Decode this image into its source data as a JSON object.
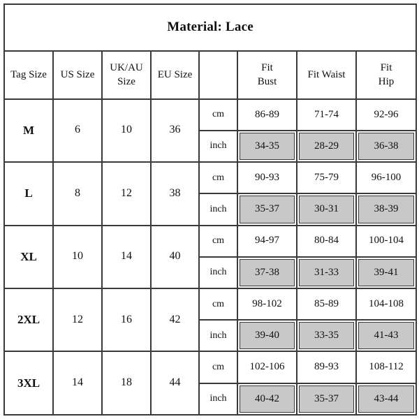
{
  "title": "Material: Lace",
  "headers": {
    "tag_size": "Tag Size",
    "us_size": "US Size",
    "uk_au_size_l1": "UK/AU",
    "uk_au_size_l2": "Size",
    "eu_size": "EU Size",
    "unit": "",
    "fit_bust_l1": "Fit",
    "fit_bust_l2": "Bust",
    "fit_waist": "Fit Waist",
    "fit_hip_l1": "Fit",
    "fit_hip_l2": "Hip"
  },
  "shade_color": "#c8c8c8",
  "sizes": [
    {
      "tag": "M",
      "us": "6",
      "uk_au": "10",
      "eu": "36",
      "cm": {
        "unit": "cm",
        "bust": "86-89",
        "waist": "71-74",
        "hip": "92-96"
      },
      "inch": {
        "unit": "inch",
        "bust": "34-35",
        "waist": "28-29",
        "hip": "36-38"
      }
    },
    {
      "tag": "L",
      "us": "8",
      "uk_au": "12",
      "eu": "38",
      "cm": {
        "unit": "cm",
        "bust": "90-93",
        "waist": "75-79",
        "hip": "96-100"
      },
      "inch": {
        "unit": "inch",
        "bust": "35-37",
        "waist": "30-31",
        "hip": "38-39"
      }
    },
    {
      "tag": "XL",
      "us": "10",
      "uk_au": "14",
      "eu": "40",
      "cm": {
        "unit": "cm",
        "bust": "94-97",
        "waist": "80-84",
        "hip": "100-104"
      },
      "inch": {
        "unit": "inch",
        "bust": "37-38",
        "waist": "31-33",
        "hip": "39-41"
      }
    },
    {
      "tag": "2XL",
      "us": "12",
      "uk_au": "16",
      "eu": "42",
      "cm": {
        "unit": "cm",
        "bust": "98-102",
        "waist": "85-89",
        "hip": "104-108"
      },
      "inch": {
        "unit": "inch",
        "bust": "39-40",
        "waist": "33-35",
        "hip": "41-43"
      }
    },
    {
      "tag": "3XL",
      "us": "14",
      "uk_au": "18",
      "eu": "44",
      "cm": {
        "unit": "cm",
        "bust": "102-106",
        "waist": "89-93",
        "hip": "108-112"
      },
      "inch": {
        "unit": "inch",
        "bust": "40-42",
        "waist": "35-37",
        "hip": "43-44"
      }
    }
  ]
}
